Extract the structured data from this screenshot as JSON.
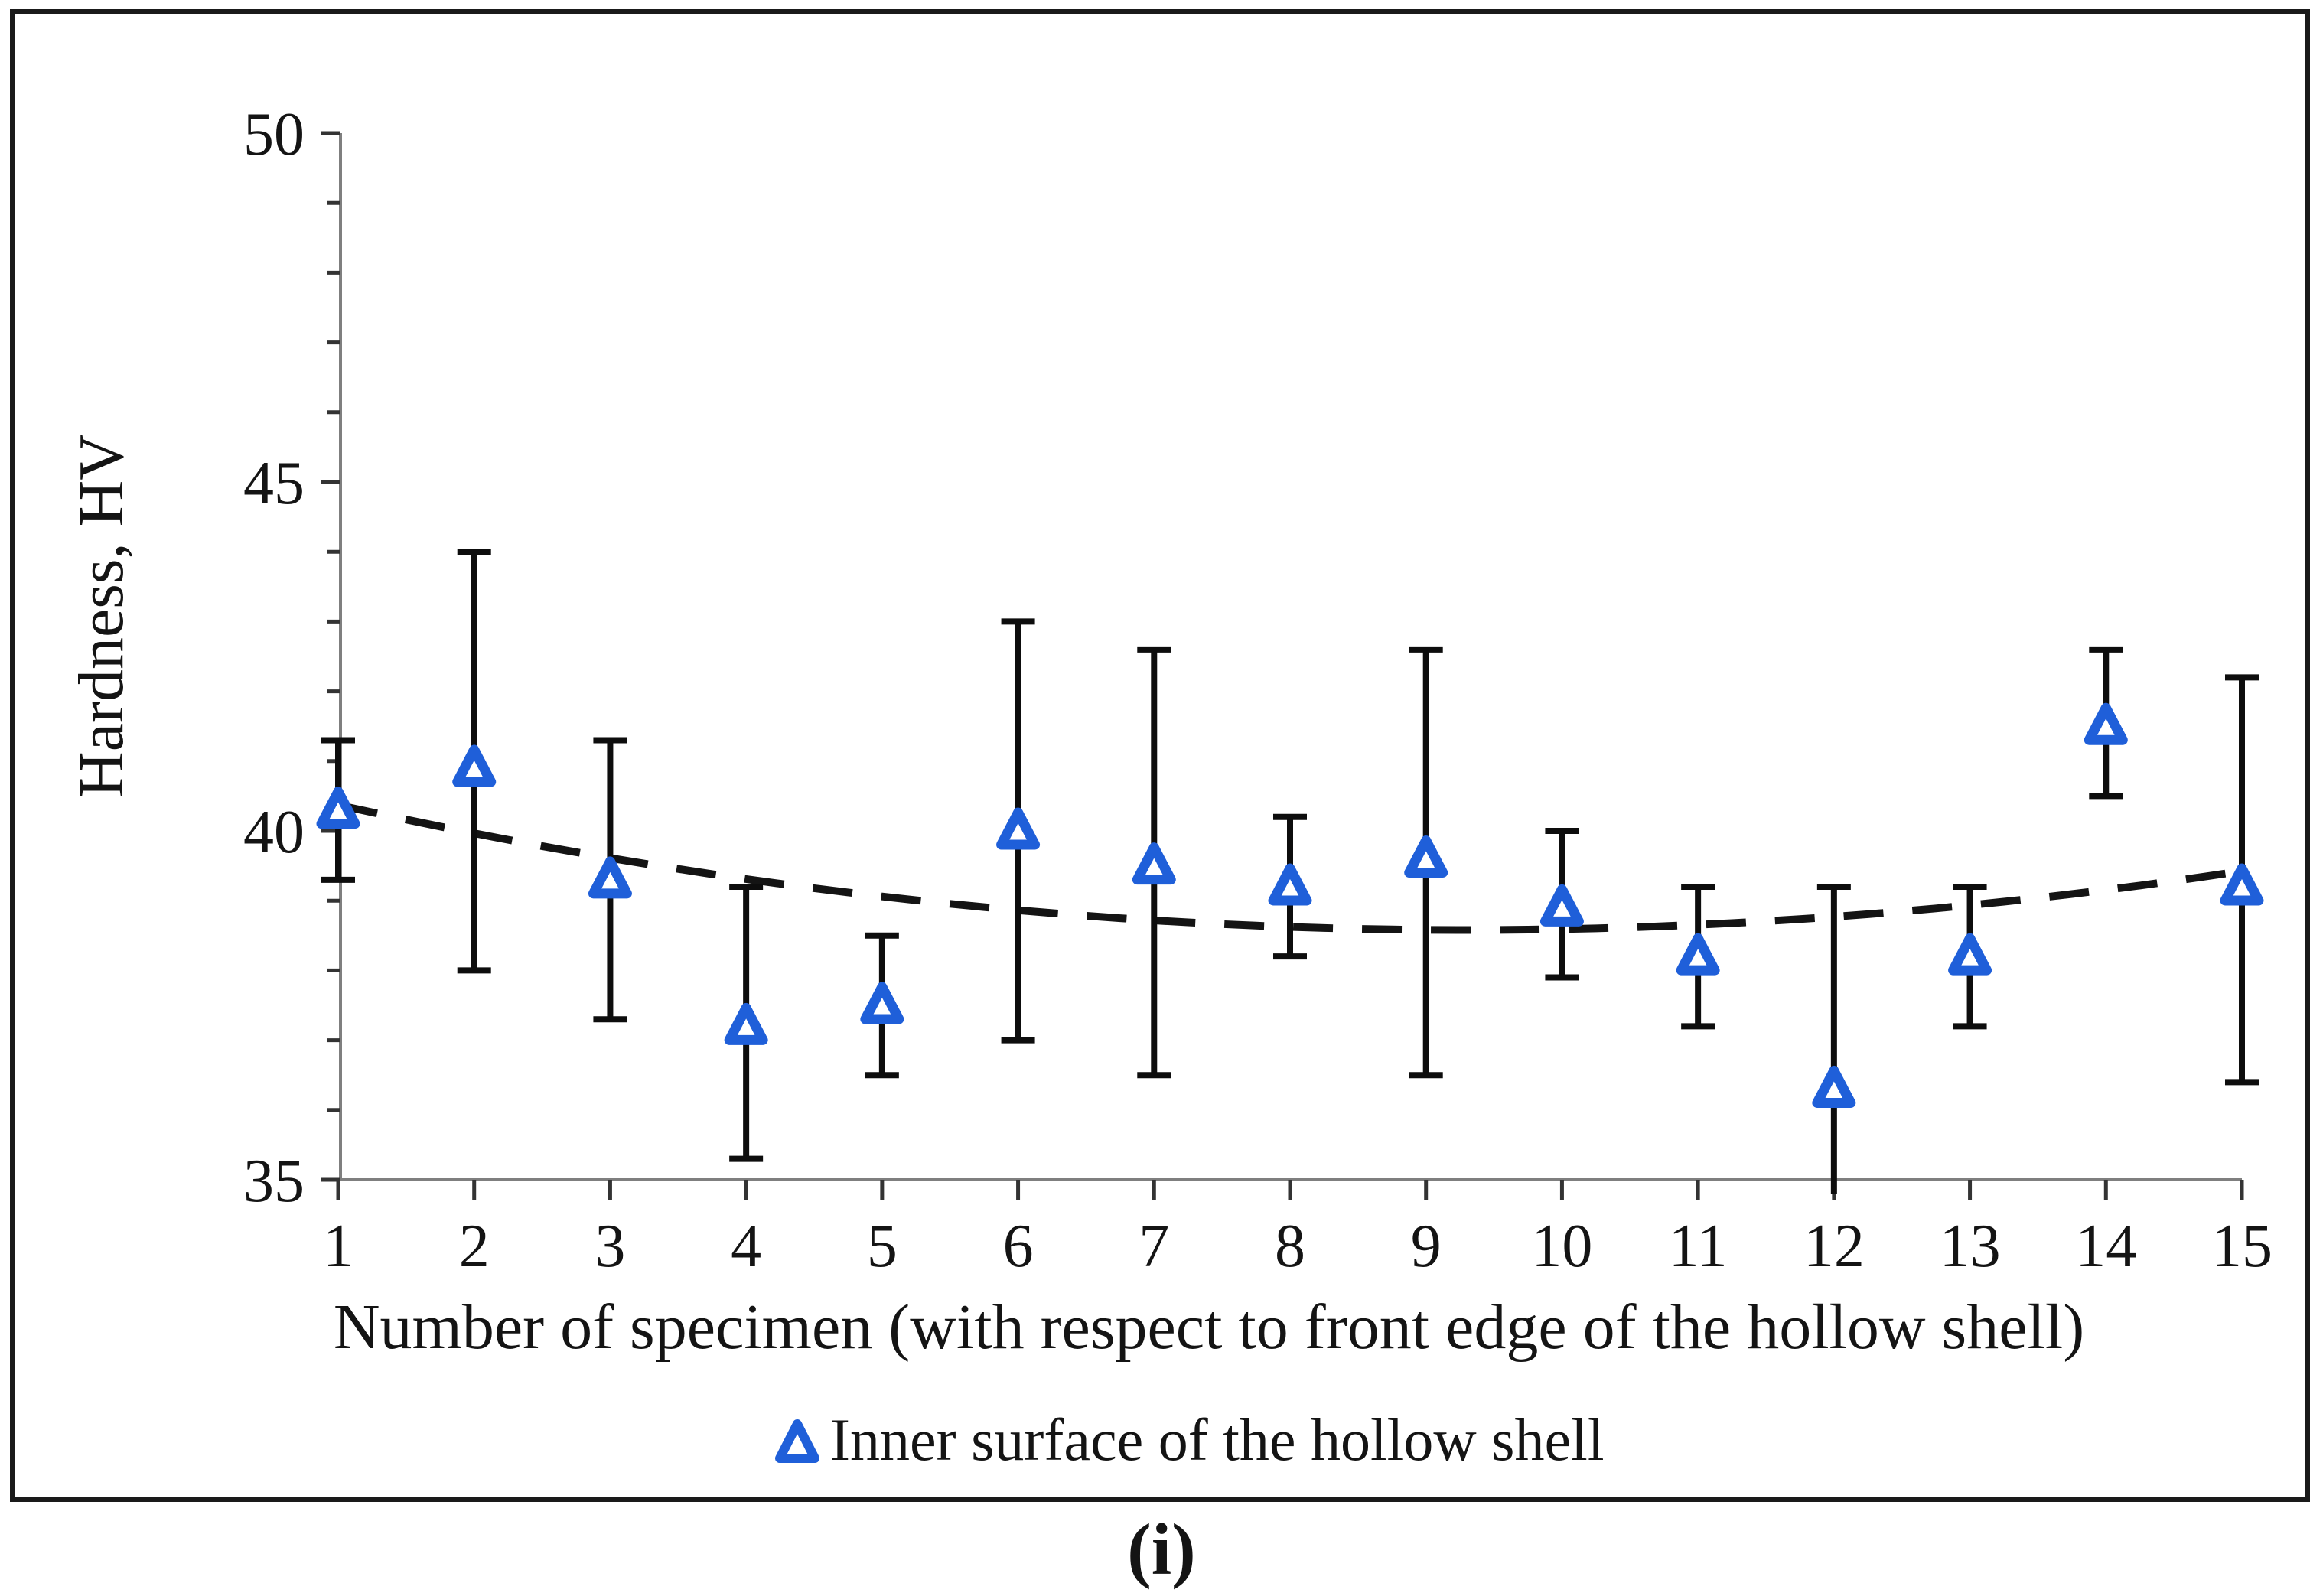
{
  "figure": {
    "caption": "(i)"
  },
  "colors": {
    "marker_blue": "#1f5fd9",
    "marker_fill": "#ffffff",
    "error_bar": "#0d0d0d",
    "trend_line": "#141414",
    "axis_line": "#7f7f7f",
    "tick": "#333333",
    "text": "#141414",
    "frame": "#1a1a1a",
    "background": "#ffffff"
  },
  "legend": {
    "marker": "open-triangle-icon",
    "label": "Inner surface of the hollow shell"
  },
  "chart_data": {
    "type": "scatter",
    "title": "",
    "xlabel": "Number of specimen (with respect to front edge of the hollow shell)",
    "ylabel": "Hardness, HV",
    "xlim": [
      1,
      15
    ],
    "ylim": [
      35,
      50
    ],
    "grid": false,
    "legend_position": "bottom",
    "x_ticks": [
      1,
      2,
      3,
      4,
      5,
      6,
      7,
      8,
      9,
      10,
      11,
      12,
      13,
      14,
      15
    ],
    "y_ticks_major": [
      35,
      40,
      45,
      50
    ],
    "y_ticks_minor": [
      36,
      37,
      38,
      39,
      41,
      42,
      43,
      44,
      46,
      47,
      48,
      49
    ],
    "series": [
      {
        "name": "Inner surface of the hollow shell",
        "marker": "open-triangle",
        "x": [
          1,
          2,
          3,
          4,
          5,
          6,
          7,
          8,
          9,
          10,
          11,
          12,
          13,
          14,
          15
        ],
        "y": [
          40.3,
          40.9,
          39.3,
          37.2,
          37.5,
          40.0,
          39.5,
          39.2,
          39.6,
          38.9,
          38.2,
          36.3,
          38.2,
          41.5,
          39.2
        ],
        "err_low": [
          39.3,
          38.0,
          37.3,
          35.3,
          36.5,
          37.0,
          36.5,
          38.2,
          36.5,
          37.9,
          37.2,
          34.8,
          37.2,
          40.5,
          36.4
        ],
        "err_high": [
          41.3,
          44.0,
          41.3,
          39.2,
          38.5,
          43.0,
          42.6,
          40.2,
          42.6,
          40.0,
          39.2,
          39.2,
          39.2,
          42.6,
          42.2
        ],
        "bottom_cap": [
          true,
          true,
          true,
          true,
          true,
          true,
          true,
          true,
          true,
          true,
          true,
          false,
          true,
          true,
          true
        ]
      }
    ],
    "trend": {
      "style": "dashed",
      "shape": "quadratic",
      "a": 0.026,
      "x0": 9.3,
      "c": 38.58,
      "x_start": 1,
      "x_end": 15
    }
  }
}
